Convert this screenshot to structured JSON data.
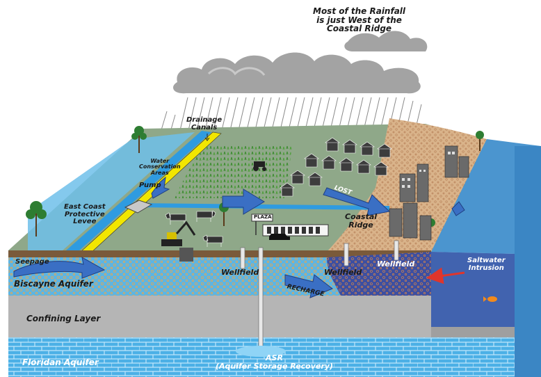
{
  "labels": {
    "rainfall": [
      "Most of the Rainfall",
      "is just West of the",
      "Coastal Ridge"
    ],
    "drainage": [
      "Drainage",
      "Canals"
    ],
    "water_conservation": [
      "Water",
      "Conservation",
      "Areas"
    ],
    "pump": "Pump",
    "levee": [
      "East Coast",
      "Protective",
      "Levee"
    ],
    "seepage": "Seepage",
    "biscayne": "Biscayne Aquifer",
    "wellfield_left": "Wellfield",
    "wellfield_mid": "Wellfield",
    "wellfield_right": "Wellfield",
    "recharge": "RECHARGE",
    "lost": "LOST",
    "plaza": "PLAZA",
    "coastal_ridge": [
      "Coastal",
      "Ridge"
    ],
    "saltwater": [
      "Saltwater",
      "Intrusion"
    ],
    "confining": "Confining Layer",
    "floridan": "Floridan Aquifer",
    "asr": [
      "ASR",
      "(Aquifer Storage Recovery)"
    ]
  },
  "colors": {
    "cloud": "#a3a3a3",
    "ground_green": "#8fa889",
    "beach": "#d9b38a",
    "ocean": "#4b95cf",
    "biscayne": "#5db5e3",
    "saltwater": "#3d4fa1",
    "confining": "#b5b5b5",
    "floridan": "#4cb0e6",
    "canal": "#2f9be0",
    "levee": "#f2e600",
    "arrow": "#3a6fc4",
    "red_arrow": "#e0352b"
  },
  "icons": [
    "cloud-icon",
    "rain-icon",
    "palm-tree-icon",
    "house-icon",
    "city-building-icon",
    "tractor-icon",
    "cow-icon",
    "excavator-icon",
    "car-icon",
    "plaza-sign-icon",
    "well-pipe-icon",
    "fish-icon",
    "arrow-icon"
  ]
}
